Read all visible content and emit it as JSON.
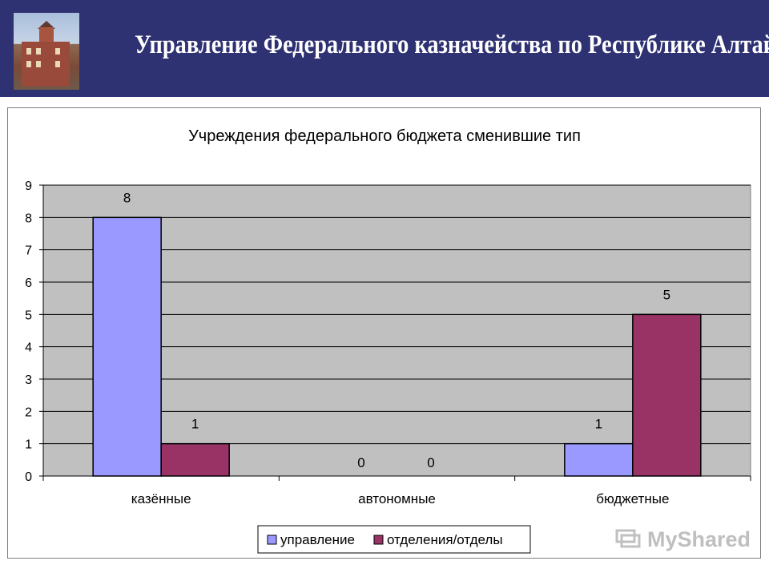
{
  "header": {
    "title": "Управление Федерального казначейства по Республике Алтай"
  },
  "watermark": {
    "text": "MyShared"
  },
  "colors": {
    "header_bg": "#2e3172",
    "plot_bg": "#c0c0c0",
    "series_1": "#9999ff",
    "series_2": "#993366"
  },
  "chart_data": {
    "type": "bar",
    "title": "Учреждения федерального бюджета сменившие тип",
    "categories": [
      "казённые",
      "автономные",
      "бюджетные"
    ],
    "series": [
      {
        "name": "управление",
        "values": [
          8,
          0,
          1
        ]
      },
      {
        "name": "отделения/отделы",
        "values": [
          1,
          0,
          5
        ]
      }
    ],
    "ylim": [
      0,
      9
    ],
    "yticks": [
      "0",
      "1",
      "2",
      "3",
      "4",
      "5",
      "6",
      "7",
      "8",
      "9"
    ],
    "grid": true,
    "legend": "bottom",
    "data_labels": true
  }
}
